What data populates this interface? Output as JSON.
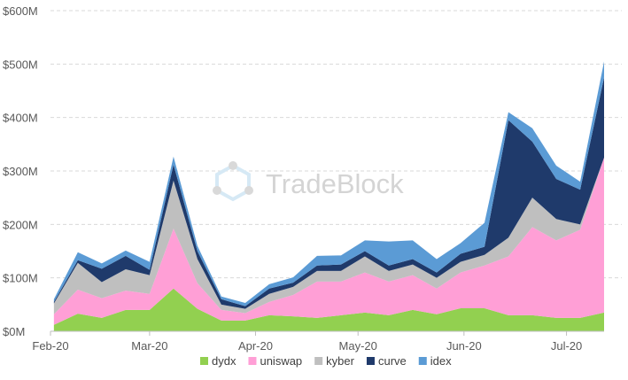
{
  "watermark": {
    "text": "TradeBlock"
  },
  "chart_data": {
    "type": "area",
    "stacked": true,
    "title": "",
    "xlabel": "",
    "ylabel": "",
    "ylim": [
      0,
      600
    ],
    "y_unit": "M",
    "y_ticks": [
      "$0M",
      "$100M",
      "$200M",
      "$300M",
      "$400M",
      "$500M",
      "$600M"
    ],
    "grid": "horizontal dashed",
    "legend_position": "bottom",
    "x_tick_labels": [
      {
        "label": "Feb-20",
        "date": "2020-02-01"
      },
      {
        "label": "Mar-20",
        "date": "2020-03-01"
      },
      {
        "label": "Apr-20",
        "date": "2020-04-01"
      },
      {
        "label": "May-20",
        "date": "2020-05-01"
      },
      {
        "label": "Jun-20",
        "date": "2020-06-01"
      },
      {
        "label": "Jul-20",
        "date": "2020-07-01"
      }
    ],
    "x": [
      "2020-02-02",
      "2020-02-09",
      "2020-02-16",
      "2020-02-23",
      "2020-03-01",
      "2020-03-08",
      "2020-03-15",
      "2020-03-22",
      "2020-03-29",
      "2020-04-05",
      "2020-04-12",
      "2020-04-19",
      "2020-04-26",
      "2020-05-03",
      "2020-05-10",
      "2020-05-17",
      "2020-05-24",
      "2020-05-31",
      "2020-06-07",
      "2020-06-14",
      "2020-06-21",
      "2020-06-28",
      "2020-07-05",
      "2020-07-12"
    ],
    "series": [
      {
        "name": "dydx",
        "color": "#92d050",
        "values": [
          12,
          33,
          25,
          40,
          40,
          80,
          42,
          20,
          20,
          30,
          28,
          25,
          30,
          35,
          30,
          40,
          32,
          43,
          43,
          30,
          30,
          25,
          25,
          35
        ]
      },
      {
        "name": "uniswap",
        "color": "#ff9fd6",
        "values": [
          20,
          45,
          37,
          36,
          30,
          112,
          48,
          20,
          14,
          25,
          40,
          68,
          63,
          75,
          63,
          65,
          48,
          67,
          80,
          110,
          165,
          145,
          165,
          290
        ]
      },
      {
        "name": "kyber",
        "color": "#bfbfbf",
        "values": [
          20,
          50,
          30,
          40,
          35,
          90,
          45,
          10,
          8,
          15,
          15,
          20,
          20,
          30,
          20,
          20,
          20,
          20,
          20,
          35,
          55,
          40,
          10,
          0
        ]
      },
      {
        "name": "curve",
        "color": "#1f3a6b",
        "values": [
          3,
          5,
          25,
          25,
          10,
          30,
          15,
          10,
          5,
          10,
          8,
          10,
          12,
          10,
          10,
          10,
          10,
          15,
          15,
          220,
          105,
          75,
          65,
          150
        ]
      },
      {
        "name": "idex",
        "color": "#5b9bd5",
        "values": [
          5,
          15,
          10,
          10,
          15,
          15,
          10,
          5,
          6,
          8,
          10,
          18,
          17,
          20,
          45,
          35,
          25,
          20,
          45,
          15,
          25,
          25,
          15,
          30
        ]
      }
    ]
  }
}
